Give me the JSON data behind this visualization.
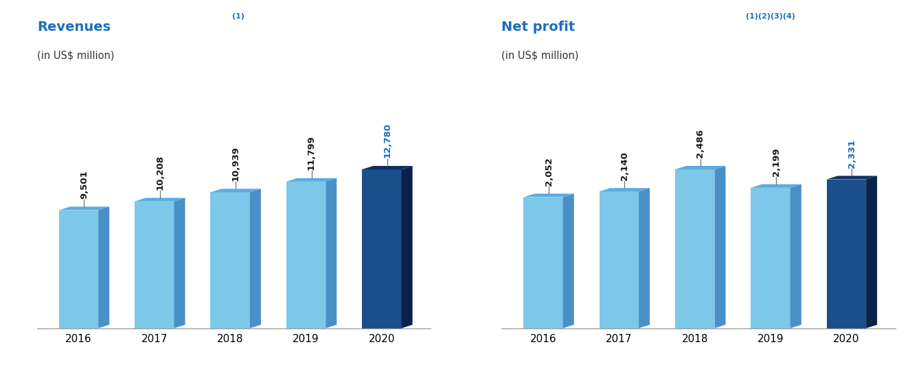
{
  "rev_years": [
    "2016",
    "2017",
    "2018",
    "2019",
    "2020"
  ],
  "rev_values": [
    9501,
    10208,
    10939,
    11799,
    12780
  ],
  "rev_labels": [
    "9,501",
    "10,208",
    "10,939",
    "11,799",
    "12,780"
  ],
  "rev_title": "Revenues",
  "rev_superscript": "(1)",
  "rev_subtitle": "(in US$ million)",
  "profit_years": [
    "2016",
    "2017",
    "2018",
    "2019",
    "2020"
  ],
  "profit_values": [
    2052,
    2140,
    2486,
    2199,
    2331
  ],
  "profit_labels": [
    "2,052",
    "2,140",
    "2,486",
    "2,199",
    "2,331"
  ],
  "profit_title": "Net profit",
  "profit_superscript": "(1)(2)(3)(4)",
  "profit_subtitle": "(in US$ million)",
  "light_blue_front": "#7DC8E8",
  "light_blue_top": "#5AACE0",
  "light_blue_side": "#4A90C8",
  "dark_blue_front": "#1A4F8C",
  "dark_blue_top": "#0F3060",
  "dark_blue_side": "#0A2248",
  "title_blue": "#1B6EC2",
  "label_color_normal": "#1a1a1a",
  "label_color_2020": "#1B6EC2",
  "background": "#ffffff"
}
